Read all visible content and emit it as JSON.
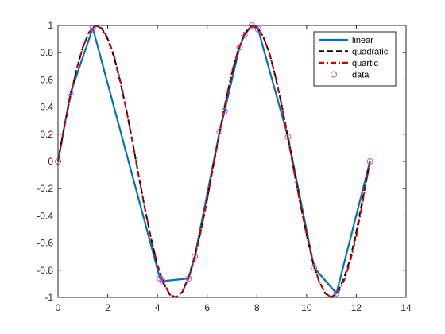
{
  "chart_data": {
    "type": "line",
    "title": "",
    "xlabel": "",
    "ylabel": "",
    "xlim": [
      0,
      14
    ],
    "ylim": [
      -1,
      1
    ],
    "xticks": [
      0,
      2,
      4,
      6,
      8,
      10,
      12,
      14
    ],
    "yticks": [
      -1,
      -0.8,
      -0.6,
      -0.4,
      -0.2,
      0,
      0.2,
      0.4,
      0.6,
      0.8,
      1
    ],
    "grid": false,
    "legend_position": "top-right",
    "legend": [
      "linear",
      "quadratic",
      "quartic",
      "data"
    ],
    "data_points": {
      "x": [
        0,
        0.5,
        1.4,
        4.1,
        4.2,
        5.25,
        5.5,
        6.5,
        6.7,
        7.3,
        7.5,
        7.8,
        8.05,
        9.25,
        10.3,
        11.2,
        12.55
      ],
      "y": [
        0,
        0.5,
        0.98,
        -0.86,
        -0.88,
        -0.86,
        -0.7,
        0.22,
        0.37,
        0.84,
        0.93,
        1.0,
        0.97,
        0.18,
        -0.78,
        -0.97,
        0.0
      ]
    },
    "series": [
      {
        "name": "linear",
        "style": "solid",
        "color": "#0072BD",
        "x": [
          0,
          0.5,
          1.4,
          4.1,
          4.2,
          5.25,
          5.5,
          6.5,
          6.7,
          7.3,
          7.5,
          7.8,
          8.05,
          9.25,
          10.3,
          11.2,
          12.55
        ],
        "y": [
          0,
          0.5,
          0.98,
          -0.86,
          -0.88,
          -0.86,
          -0.7,
          0.22,
          0.37,
          0.84,
          0.93,
          1.0,
          0.97,
          0.18,
          -0.78,
          -0.97,
          0.0
        ]
      },
      {
        "name": "quadratic",
        "style": "dashed",
        "color": "#000000",
        "x": [
          0,
          0.25,
          0.5,
          0.75,
          1.0,
          1.25,
          1.5,
          1.75,
          2.0,
          2.25,
          2.5,
          2.75,
          3.0,
          3.25,
          3.5,
          3.75,
          4.0,
          4.25,
          4.5,
          4.75,
          5.0,
          5.25,
          5.5,
          5.75,
          6.0,
          6.25,
          6.5,
          6.75,
          7.0,
          7.25,
          7.5,
          7.75,
          8.0,
          8.25,
          8.5,
          8.75,
          9.0,
          9.25,
          9.5,
          9.75,
          10.0,
          10.25,
          10.5,
          10.75,
          11.0,
          11.25,
          11.5,
          11.75,
          12.0,
          12.25,
          12.55
        ],
        "y": [
          0,
          0.25,
          0.48,
          0.68,
          0.84,
          0.95,
          1.0,
          0.98,
          0.9,
          0.77,
          0.59,
          0.38,
          0.14,
          -0.11,
          -0.35,
          -0.57,
          -0.76,
          -0.9,
          -0.98,
          -1.0,
          -0.96,
          -0.85,
          -0.7,
          -0.51,
          -0.28,
          -0.03,
          0.21,
          0.45,
          0.65,
          0.82,
          0.94,
          0.99,
          0.99,
          0.92,
          0.8,
          0.62,
          0.41,
          0.18,
          -0.07,
          -0.31,
          -0.54,
          -0.74,
          -0.88,
          -0.97,
          -1.0,
          -0.96,
          -0.86,
          -0.72,
          -0.52,
          -0.28,
          0.0
        ]
      },
      {
        "name": "quartic",
        "style": "dash-dot",
        "color": "#D00000",
        "x": [
          0,
          0.25,
          0.5,
          0.75,
          1.0,
          1.25,
          1.5,
          1.75,
          2.0,
          2.25,
          2.5,
          2.75,
          3.0,
          3.25,
          3.5,
          3.75,
          4.0,
          4.25,
          4.5,
          4.75,
          5.0,
          5.25,
          5.5,
          5.75,
          6.0,
          6.25,
          6.5,
          6.75,
          7.0,
          7.25,
          7.5,
          7.75,
          8.0,
          8.25,
          8.5,
          8.75,
          9.0,
          9.25,
          9.5,
          9.75,
          10.0,
          10.25,
          10.5,
          10.75,
          11.0,
          11.25,
          11.5,
          11.75,
          12.0,
          12.25,
          12.55
        ],
        "y": [
          0,
          0.25,
          0.48,
          0.68,
          0.84,
          0.95,
          1.0,
          0.98,
          0.91,
          0.78,
          0.6,
          0.38,
          0.14,
          -0.11,
          -0.35,
          -0.57,
          -0.76,
          -0.89,
          -0.98,
          -1.0,
          -0.96,
          -0.86,
          -0.71,
          -0.51,
          -0.28,
          -0.03,
          0.22,
          0.45,
          0.66,
          0.82,
          0.94,
          0.99,
          0.99,
          0.92,
          0.8,
          0.62,
          0.41,
          0.17,
          -0.08,
          -0.32,
          -0.54,
          -0.73,
          -0.88,
          -0.97,
          -1.0,
          -0.97,
          -0.88,
          -0.74,
          -0.55,
          -0.3,
          0.0
        ]
      }
    ]
  },
  "colors": {
    "linear": "#0072BD",
    "quadratic": "#000000",
    "quartic": "#D00000",
    "data_marker": "#B05AC8",
    "axis": "#262626"
  }
}
